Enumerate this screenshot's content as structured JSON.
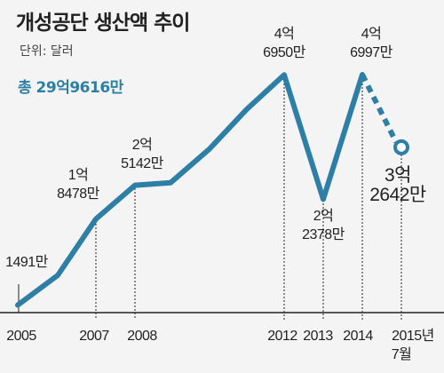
{
  "header": {
    "title": "개성공단 생산액 추이",
    "unit": "단위: 달러",
    "total": "총 29억9616만"
  },
  "colors": {
    "line": "#2e7fa6",
    "axis": "#222222"
  },
  "chart_data": {
    "type": "line",
    "title": "개성공단 생산액 추이",
    "ylabel": "단위: 달러",
    "total_label": "총 29억9616만",
    "x_ticks": [
      "2005",
      "2007",
      "2008",
      "2012",
      "2013",
      "2014",
      "2015년",
      "7월"
    ],
    "grid": false,
    "series": [
      {
        "values": [
          {
            "x": 2005,
            "y": 14910000
          },
          {
            "x": 2006,
            "y": 73730000
          },
          {
            "x": 2007,
            "y": 184780000
          },
          {
            "x": 2008,
            "y": 251420000
          },
          {
            "x": 2009,
            "y": 256470000
          },
          {
            "x": 2010,
            "y": 323320000
          },
          {
            "x": 2011,
            "y": 401850000
          },
          {
            "x": 2012,
            "y": 469500000
          },
          {
            "x": 2013,
            "y": 223780000
          },
          {
            "x": 2014,
            "y": 469970000
          }
        ]
      },
      {
        "style": "dashed",
        "values": [
          {
            "x": 2014,
            "y": 469970000
          },
          {
            "x": "2015년 7월",
            "y": 326420000
          }
        ]
      }
    ],
    "annotations": [
      {
        "x": 2005,
        "y": 14910000,
        "lines": [
          "1491만"
        ]
      },
      {
        "x": 2007,
        "y": 184780000,
        "lines": [
          "1억",
          "8478만"
        ]
      },
      {
        "x": 2008,
        "y": 251420000,
        "lines": [
          "2억",
          "5142만"
        ]
      },
      {
        "x": 2012,
        "y": 469500000,
        "lines": [
          "4억",
          "6950만"
        ]
      },
      {
        "x": 2013,
        "y": 223780000,
        "lines": [
          "2억",
          "2378만"
        ]
      },
      {
        "x": 2014,
        "y": 469970000,
        "lines": [
          "4억",
          "6997만"
        ]
      },
      {
        "x": "2015년 7월",
        "y": 326420000,
        "lines": [
          "3억",
          "2642만"
        ]
      }
    ]
  }
}
